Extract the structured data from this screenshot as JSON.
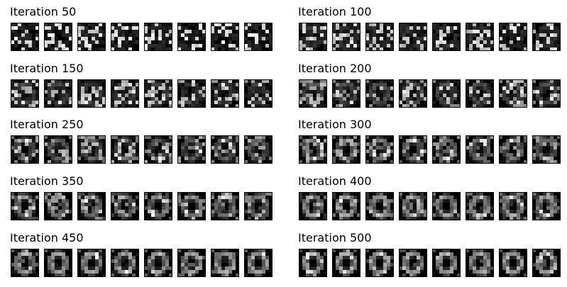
{
  "panels": [
    {
      "title": "Iteration 50"
    },
    {
      "title": "Iteration 100"
    },
    {
      "title": "Iteration 150"
    },
    {
      "title": "Iteration 200"
    },
    {
      "title": "Iteration 250"
    },
    {
      "title": "Iteration 300"
    },
    {
      "title": "Iteration 350"
    },
    {
      "title": "Iteration 400"
    },
    {
      "title": "Iteration 450"
    },
    {
      "title": "Iteration 500"
    }
  ],
  "samples_per_panel": 8,
  "sample_grid": "8x8 grayscale",
  "colors": {
    "background": "#ffffff",
    "cell_low": "#000000",
    "cell_high": "#ffffff",
    "frame": "#000000"
  }
}
